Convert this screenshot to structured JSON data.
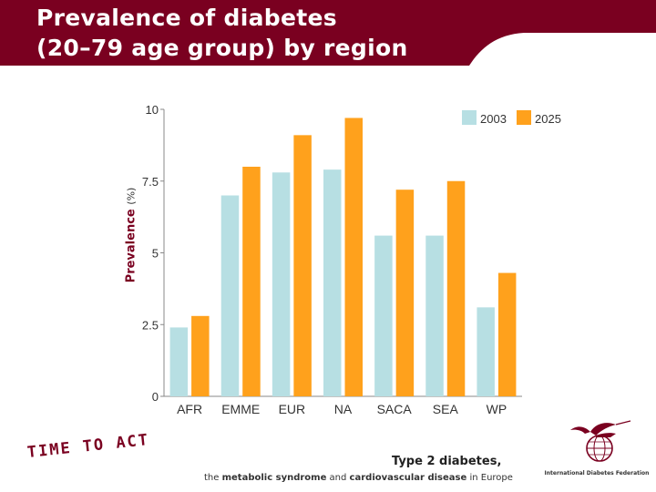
{
  "header": {
    "title_line1": "Prevalence of diabetes",
    "title_line2": "(20–79 age group) by region",
    "background_color": "#7a0020"
  },
  "chart_data": {
    "type": "bar",
    "categories": [
      "AFR",
      "EMME",
      "EUR",
      "NA",
      "SACA",
      "SEA",
      "WP"
    ],
    "series": [
      {
        "name": "2003",
        "color": "#b7dfe3",
        "values": [
          2.4,
          7.0,
          7.8,
          7.9,
          5.6,
          5.6,
          3.1
        ]
      },
      {
        "name": "2025",
        "color": "#ffa11c",
        "values": [
          2.8,
          8.0,
          9.1,
          9.7,
          7.2,
          7.5,
          4.3
        ]
      }
    ],
    "ylabel": "Prevalence",
    "ylabel_unit": "(%)",
    "ylim": [
      0,
      10
    ],
    "yticks": [
      0,
      2.5,
      5,
      7.5,
      10
    ],
    "ytick_labels": [
      "0",
      "2.5",
      "5",
      "7.5",
      "10"
    ],
    "legend_position": "top-right",
    "grid": false
  },
  "footer": {
    "slogan": "TIME TO ACT",
    "line1": "Type 2 diabetes,",
    "line2_prefix": "the ",
    "line2_term1": "metabolic syndrome",
    "line2_mid": " and ",
    "line2_term2": "cardiovascular disease",
    "line2_suffix": " in Europe"
  },
  "logo": {
    "icon": "hummingbird-globe-icon",
    "text": "International Diabetes Federation"
  }
}
